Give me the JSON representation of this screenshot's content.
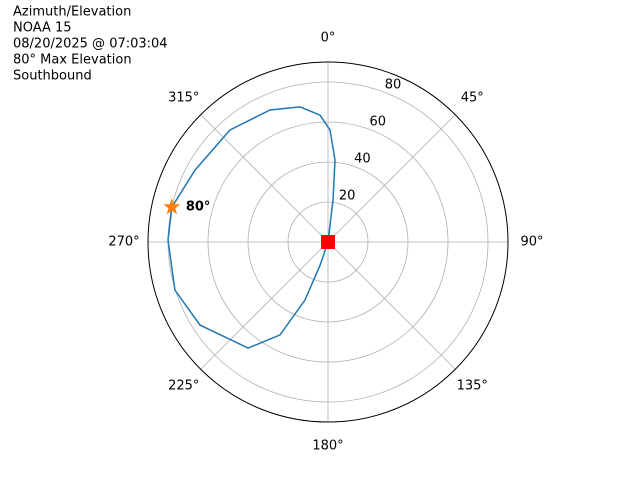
{
  "chart_data": {
    "type": "polar",
    "title": "Azimuth/Elevation",
    "subtitle": [
      "NOAA 15",
      "08/20/2025 @ 07:03:04",
      "80° Max Elevation",
      "Southbound"
    ],
    "xlim": [
      0,
      360
    ],
    "xticks": [
      {
        "value": 0,
        "label": "0°"
      },
      {
        "value": 45,
        "label": "45°"
      },
      {
        "value": 90,
        "label": "90°"
      },
      {
        "value": 135,
        "label": "135°"
      },
      {
        "value": 180,
        "label": "180°"
      },
      {
        "value": 225,
        "label": "225°"
      },
      {
        "value": 270,
        "label": "270°"
      },
      {
        "value": 315,
        "label": "315°"
      }
    ],
    "ylim": [
      0,
      90
    ],
    "yticks": [
      20,
      40,
      60,
      80
    ],
    "grid": true,
    "series": [
      {
        "color": "#1f77b4",
        "x": [
          0,
          6.8,
          4.9,
          1,
          356.4,
          348.3,
          336.3,
          318.8,
          298.4,
          282.6,
          270.7,
          252.6,
          237,
          217,
          207.3,
          201.6,
          199,
          0
        ],
        "values": [
          0,
          21.1,
          41.1,
          56,
          63.6,
          69,
          72.1,
          74.4,
          75.6,
          80,
          80,
          80.2,
          76.3,
          66.4,
          52.3,
          31.2,
          12.2,
          0
        ]
      }
    ],
    "start": {
      "x": 0,
      "value": 0,
      "color": "#2ca02c"
    },
    "end": {
      "x": 0,
      "value": 0,
      "color": "#ff0000"
    },
    "max": {
      "x": 282.6,
      "value": 80,
      "label": "80°",
      "color": "#ff7f0e"
    }
  }
}
